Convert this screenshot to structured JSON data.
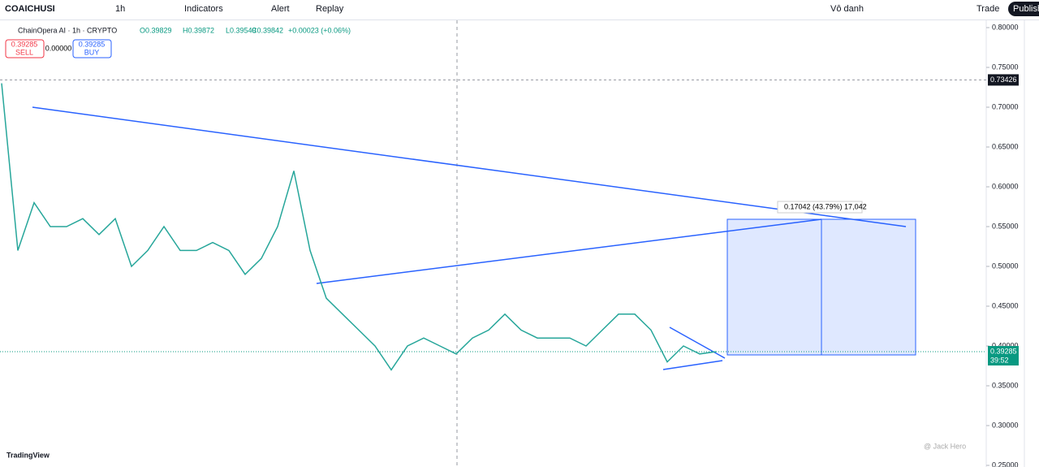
{
  "toolbar": {
    "symbol": "COAICHUSI",
    "interval": "1h",
    "indicators": "Indicators",
    "alert": "Alert",
    "replay": "Replay",
    "layout_name": "Vô danh",
    "trade": "Trade",
    "publish": "Publish"
  },
  "legend": {
    "name": "ChainOpera AI · 1h · CRYPTO",
    "open": "O0.39829",
    "high": "H0.39872",
    "low": "L0.39549",
    "close": "C0.39842",
    "change": "+0.00023 (+0.06%)"
  },
  "order": {
    "sell_price": "0.39285",
    "sell": "SELL",
    "spread": "0.00000",
    "buy_price": "0.39285",
    "buy": "BUY"
  },
  "price_axis": {
    "ticks": [
      {
        "value": 0.8,
        "label": "0.80000"
      },
      {
        "value": 0.75,
        "label": "0.75000"
      },
      {
        "value": 0.7,
        "label": "0.70000"
      },
      {
        "value": 0.65,
        "label": "0.65000"
      },
      {
        "value": 0.6,
        "label": "0.60000"
      },
      {
        "value": 0.55,
        "label": "0.55000"
      },
      {
        "value": 0.5,
        "label": "0.50000"
      },
      {
        "value": 0.45,
        "label": "0.45000"
      },
      {
        "value": 0.4,
        "label": "0.40000"
      },
      {
        "value": 0.35,
        "label": "0.35000"
      },
      {
        "value": 0.3,
        "label": "0.30000"
      },
      {
        "value": 0.25,
        "label": "0.25000"
      }
    ]
  },
  "price_labels": {
    "high_line": {
      "value": 0.73426,
      "label": "0.73426"
    },
    "last": {
      "value": 0.39285,
      "label": "0.39285"
    },
    "countdown": "39:52"
  },
  "measure": "0.17042 (43.79%) 17,042",
  "price_line": [
    0.73,
    0.52,
    0.58,
    0.55,
    0.55,
    0.56,
    0.54,
    0.56,
    0.5,
    0.52,
    0.55,
    0.52,
    0.52,
    0.53,
    0.52,
    0.49,
    0.51,
    0.55,
    0.62,
    0.52,
    0.46,
    0.44,
    0.42,
    0.4,
    0.37,
    0.4,
    0.41,
    0.4,
    0.39,
    0.41,
    0.42,
    0.44,
    0.42,
    0.41,
    0.41,
    0.41,
    0.4,
    0.42,
    0.44,
    0.44,
    0.42,
    0.38,
    0.4,
    0.39,
    0.39285
  ],
  "logo": "TradingView",
  "watermark": "@ Jack Hero"
}
